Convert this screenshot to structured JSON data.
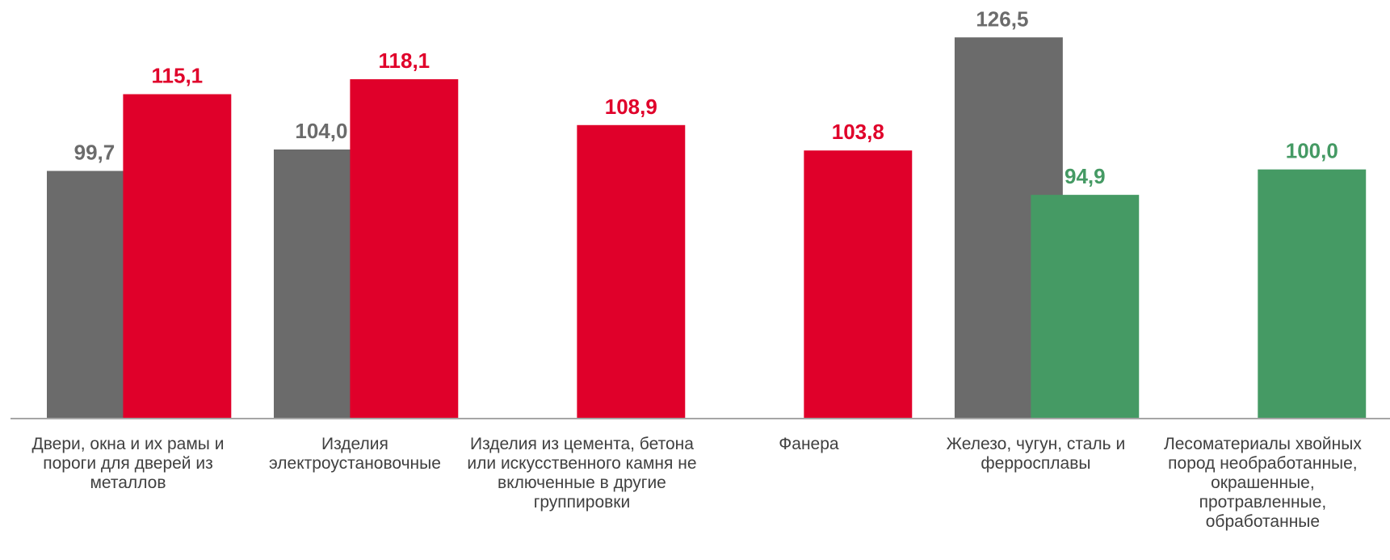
{
  "chart_data": {
    "type": "bar",
    "categories": [
      "Двери,  окна  и их рамы и пороги для дверей из металлов",
      "Изделия электроустановочные",
      "Изделия из цемента, бетона или искусственного камня не включенные в другие группировки",
      "Фанера",
      "Железо, чугун, сталь и ферросплавы",
      "Лесоматериалы хвойных пород необработанные, окрашенные, протравленные, обработанные"
    ],
    "series": [
      {
        "color": "#6b6b6b",
        "values": [
          99.7,
          104.0,
          null,
          null,
          126.5,
          null
        ],
        "value_labels": [
          "99,7",
          "104,0",
          null,
          null,
          "126,5",
          null
        ]
      },
      {
        "colors": [
          "#e0002a",
          "#e0002a",
          "#e0002a",
          "#e0002a",
          "#459a64",
          "#459a64"
        ],
        "values": [
          115.1,
          118.1,
          108.9,
          103.8,
          94.9,
          100.0
        ],
        "value_labels": [
          "115,1",
          "118,1",
          "108,9",
          "103,8",
          "94,9",
          "100,0"
        ]
      }
    ],
    "ylim": [
      50,
      134
    ]
  }
}
